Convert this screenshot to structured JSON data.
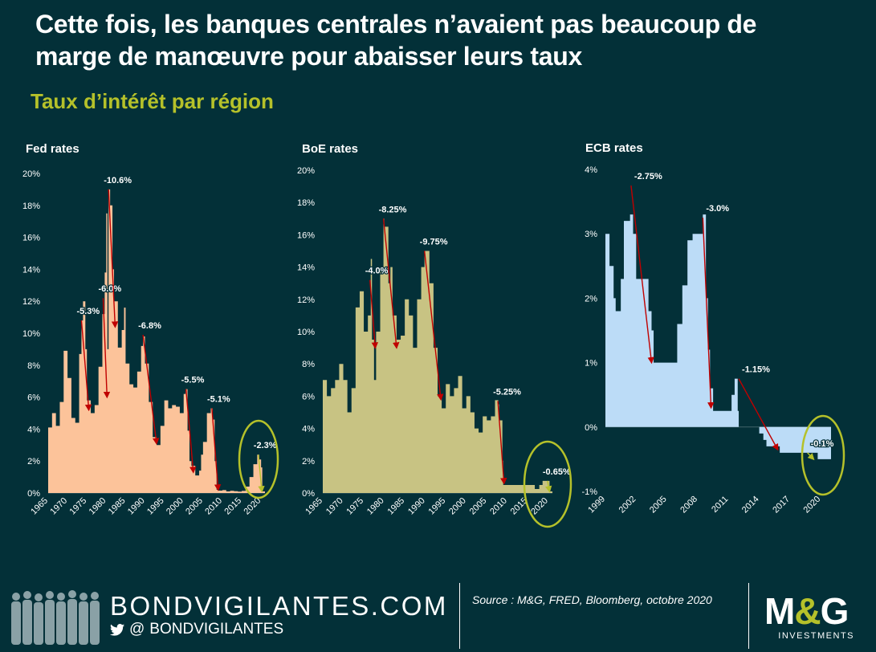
{
  "header": {
    "title": "Cette fois, les banques centrales n’avaient pas beaucoup de marge de manœuvre pour abaisser leurs taux",
    "subtitle": "Taux d’intérêt par région"
  },
  "colors": {
    "background": "#033038",
    "fed_fill": "#fcc39a",
    "boe_fill": "#c8c383",
    "ecb_fill": "#bcdcf7",
    "arrow_red": "#c00000",
    "arrow_green": "#b5c12a",
    "circle": "#b5c12a",
    "subtitle": "#b5c12a"
  },
  "chart_data": [
    {
      "id": "fed",
      "type": "area",
      "title": "Fed rates",
      "xlabel": "",
      "ylabel": "",
      "ylim": [
        0,
        20
      ],
      "yticks": [
        0,
        2,
        4,
        6,
        8,
        10,
        12,
        14,
        16,
        18,
        20
      ],
      "ytick_suffix": "%",
      "xlim": [
        1965,
        2021
      ],
      "xticks": [
        1965,
        1970,
        1975,
        1980,
        1985,
        1990,
        1995,
        2000,
        2005,
        2010,
        2015,
        2020
      ],
      "x": [
        1965,
        1966,
        1967,
        1968,
        1969,
        1970,
        1971,
        1972,
        1973,
        1973.6,
        1974,
        1974.6,
        1975,
        1976,
        1977,
        1978,
        1979,
        1979.6,
        1980,
        1980.3,
        1980.6,
        1981,
        1981.6,
        1982,
        1983,
        1984,
        1984.6,
        1985,
        1986,
        1987,
        1988,
        1989,
        1989.5,
        1990,
        1991,
        1992,
        1993,
        1994,
        1995,
        1996,
        1997,
        1998,
        1999,
        2000,
        2000.5,
        2001,
        2001.5,
        2002,
        2003,
        2004,
        2004.5,
        2005,
        2006,
        2007,
        2007.5,
        2008,
        2008.5,
        2009,
        2010,
        2011,
        2012,
        2013,
        2014,
        2015,
        2016,
        2017,
        2018,
        2019,
        2019.5,
        2020,
        2020.3,
        2021
      ],
      "y": [
        4.1,
        5.0,
        4.2,
        5.7,
        8.9,
        7.2,
        4.7,
        4.4,
        8.7,
        10.8,
        12.0,
        9.0,
        5.8,
        5.0,
        5.5,
        7.9,
        11.2,
        13.8,
        17.5,
        9.0,
        19.0,
        18.0,
        14.0,
        12.0,
        9.1,
        10.2,
        11.6,
        8.1,
        6.8,
        6.6,
        7.6,
        9.2,
        9.8,
        8.1,
        5.7,
        3.5,
        3.0,
        4.2,
        5.8,
        5.3,
        5.5,
        5.4,
        5.0,
        6.2,
        6.5,
        3.9,
        2.0,
        1.7,
        1.1,
        1.4,
        2.4,
        3.2,
        5.0,
        5.3,
        4.6,
        2.0,
        0.2,
        0.15,
        0.18,
        0.1,
        0.14,
        0.11,
        0.09,
        0.13,
        0.4,
        1.0,
        1.8,
        2.4,
        2.1,
        1.6,
        0.1,
        0.09
      ],
      "annotations": [
        {
          "label": "-5.3%",
          "from": [
            1973.6,
            10.8
          ],
          "to": [
            1975.5,
            5.2
          ],
          "color": "red"
        },
        {
          "label": "-6.0%",
          "from": [
            1979.2,
            12.2
          ],
          "to": [
            1980.2,
            6.0
          ],
          "color": "red"
        },
        {
          "label": "-10.6%",
          "from": [
            1980.6,
            19.0
          ],
          "to": [
            1982.3,
            10.4
          ],
          "color": "red"
        },
        {
          "label": "-6.8%",
          "from": [
            1989.5,
            9.9
          ],
          "to": [
            1993.0,
            3.1
          ],
          "color": "red"
        },
        {
          "label": "-5.5%",
          "from": [
            2000.6,
            6.5
          ],
          "to": [
            2002.5,
            1.3
          ],
          "color": "red"
        },
        {
          "label": "-5.1%",
          "from": [
            2007.3,
            5.3
          ],
          "to": [
            2008.9,
            0.2
          ],
          "color": "red"
        },
        {
          "label": "-2.3%",
          "from": [
            2019.3,
            2.4
          ],
          "to": [
            2020.2,
            0.1
          ],
          "color": "green"
        }
      ]
    },
    {
      "id": "boe",
      "type": "area",
      "title": "BoE rates",
      "xlabel": "",
      "ylabel": "",
      "ylim": [
        0,
        20
      ],
      "yticks": [
        0,
        2,
        4,
        6,
        8,
        10,
        12,
        14,
        16,
        18,
        20
      ],
      "ytick_suffix": "%",
      "xlim": [
        1965,
        2021
      ],
      "xticks": [
        1965,
        1970,
        1975,
        1980,
        1985,
        1990,
        1995,
        2000,
        2005,
        2010,
        2015,
        2020
      ],
      "x": [
        1965,
        1966,
        1967,
        1968,
        1969,
        1970,
        1971,
        1972,
        1973,
        1974,
        1975,
        1976,
        1976.7,
        1977,
        1977.5,
        1978,
        1979,
        1979.8,
        1980,
        1981,
        1981.5,
        1982,
        1983,
        1984,
        1985,
        1986,
        1987,
        1988,
        1989,
        1989.8,
        1990,
        1991,
        1992,
        1993,
        1994,
        1995,
        1996,
        1997,
        1998,
        1999,
        2000,
        2001,
        2002,
        2003,
        2004,
        2005,
        2006,
        2007,
        2007.8,
        2008,
        2008.8,
        2009,
        2012,
        2016,
        2016.7,
        2017.8,
        2018.6,
        2019,
        2020,
        2020.3,
        2021
      ],
      "y": [
        7.0,
        6.0,
        6.5,
        7.0,
        8.0,
        7.0,
        5.0,
        6.5,
        11.5,
        12.5,
        10.0,
        11.0,
        14.5,
        9.5,
        7.0,
        10.0,
        14.0,
        17.0,
        16.5,
        13.0,
        14.0,
        11.0,
        9.5,
        9.75,
        12.0,
        11.0,
        9.0,
        12.0,
        14.0,
        15.0,
        15.0,
        13.0,
        9.0,
        6.0,
        5.25,
        6.75,
        6.0,
        6.5,
        7.25,
        5.25,
        6.0,
        5.0,
        4.0,
        3.75,
        4.75,
        4.5,
        4.75,
        5.75,
        5.5,
        4.5,
        2.0,
        0.5,
        0.5,
        0.5,
        0.25,
        0.5,
        0.75,
        0.75,
        0.75,
        0.1,
        0.1
      ],
      "annotations": [
        {
          "label": "-4.0%",
          "from": [
            1976.5,
            13.2
          ],
          "to": [
            1977.8,
            9.0
          ],
          "color": "red"
        },
        {
          "label": "-8.25%",
          "from": [
            1979.8,
            17.0
          ],
          "to": [
            1983.0,
            9.0
          ],
          "color": "red"
        },
        {
          "label": "-9.75%",
          "from": [
            1989.8,
            15.0
          ],
          "to": [
            1993.8,
            5.8
          ],
          "color": "red"
        },
        {
          "label": "-5.25%",
          "from": [
            2007.7,
            5.7
          ],
          "to": [
            2009.2,
            0.6
          ],
          "color": "red"
        },
        {
          "label": "-0.65%",
          "from": [
            2019.8,
            0.75
          ],
          "to": [
            2020.3,
            0.1
          ],
          "color": "green"
        }
      ]
    },
    {
      "id": "ecb",
      "type": "area",
      "title": "ECB rates",
      "xlabel": "",
      "ylabel": "",
      "ylim": [
        -1,
        4
      ],
      "yticks": [
        -1,
        0,
        1,
        2,
        3,
        4
      ],
      "ytick_suffix": "%",
      "xlim": [
        1999,
        2021
      ],
      "xticks": [
        1999,
        2002,
        2005,
        2008,
        2011,
        2014,
        2017,
        2020
      ],
      "x": [
        1999,
        1999.4,
        1999.8,
        2000,
        2000.5,
        2000.8,
        2001.4,
        2001.7,
        2002.0,
        2002.5,
        2003.0,
        2003.2,
        2003.5,
        2003.7,
        2004,
        2005,
        2005.8,
        2006,
        2006.5,
        2007,
        2007.5,
        2008,
        2008.5,
        2008.8,
        2009,
        2009.2,
        2009.5,
        2010,
        2011,
        2011.3,
        2011.6,
        2011.9,
        2012,
        2012.5,
        2013,
        2014,
        2014.4,
        2014.7,
        2015,
        2016,
        2019.7,
        2021
      ],
      "y": [
        3.0,
        2.5,
        2.0,
        1.8,
        2.3,
        3.2,
        3.3,
        3.0,
        2.3,
        2.3,
        2.3,
        1.8,
        1.5,
        1.0,
        1.0,
        1.0,
        1.0,
        1.6,
        2.2,
        2.9,
        3.0,
        3.0,
        3.3,
        2.0,
        1.2,
        0.6,
        0.25,
        0.25,
        0.25,
        0.5,
        0.75,
        0.25,
        0.0,
        0.0,
        0.0,
        -0.1,
        -0.2,
        -0.3,
        -0.3,
        -0.4,
        -0.5,
        -0.5
      ],
      "annotations": [
        {
          "label": "-2.75%",
          "from": [
            2001.5,
            3.75
          ],
          "to": [
            2003.5,
            1.0
          ],
          "color": "red"
        },
        {
          "label": "-3.0%",
          "from": [
            2008.5,
            3.25
          ],
          "to": [
            2009.3,
            0.3
          ],
          "color": "red"
        },
        {
          "label": "-1.15%",
          "from": [
            2012.0,
            0.75
          ],
          "to": [
            2015.8,
            -0.35
          ],
          "color": "red"
        },
        {
          "label": "-0.1%",
          "from": [
            2018.7,
            -0.4
          ],
          "to": [
            2019.3,
            -0.5
          ],
          "color": "green"
        }
      ]
    }
  ],
  "footer": {
    "site": "BONDVIGILANTES.COM",
    "handle": "BONDVIGILANTES",
    "at": "@",
    "source": "Source : M&G, FRED, Bloomberg, octobre 2020",
    "logo_m": "M",
    "logo_amp": "&",
    "logo_g": "G",
    "logo_sub": "INVESTMENTS"
  }
}
